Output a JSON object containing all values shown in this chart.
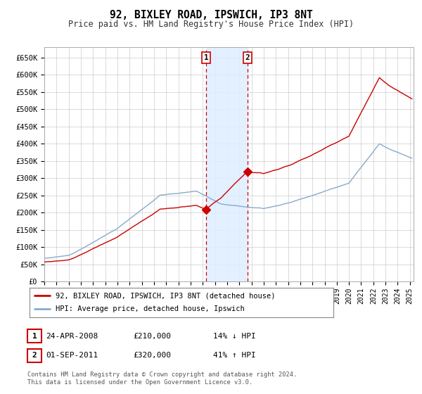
{
  "title": "92, BIXLEY ROAD, IPSWICH, IP3 8NT",
  "subtitle": "Price paid vs. HM Land Registry's House Price Index (HPI)",
  "ylim": [
    0,
    680000
  ],
  "xlim_left": 1995,
  "xlim_right": 2025.3,
  "sale1_date_x": 2008.29,
  "sale1_price": 210000,
  "sale2_date_x": 2011.67,
  "sale2_price": 320000,
  "legend_line1": "92, BIXLEY ROAD, IPSWICH, IP3 8NT (detached house)",
  "legend_line2": "HPI: Average price, detached house, Ipswich",
  "annotation1_date": "24-APR-2008",
  "annotation1_price": "£210,000",
  "annotation1_hpi": "14% ↓ HPI",
  "annotation2_date": "01-SEP-2011",
  "annotation2_price": "£320,000",
  "annotation2_hpi": "41% ↑ HPI",
  "copyright": "Contains HM Land Registry data © Crown copyright and database right 2024.\nThis data is licensed under the Open Government Licence v3.0.",
  "line_red_color": "#cc0000",
  "line_blue_color": "#88aacc",
  "background_color": "#ffffff",
  "grid_color": "#cccccc",
  "shade_color": "#ddeeff"
}
